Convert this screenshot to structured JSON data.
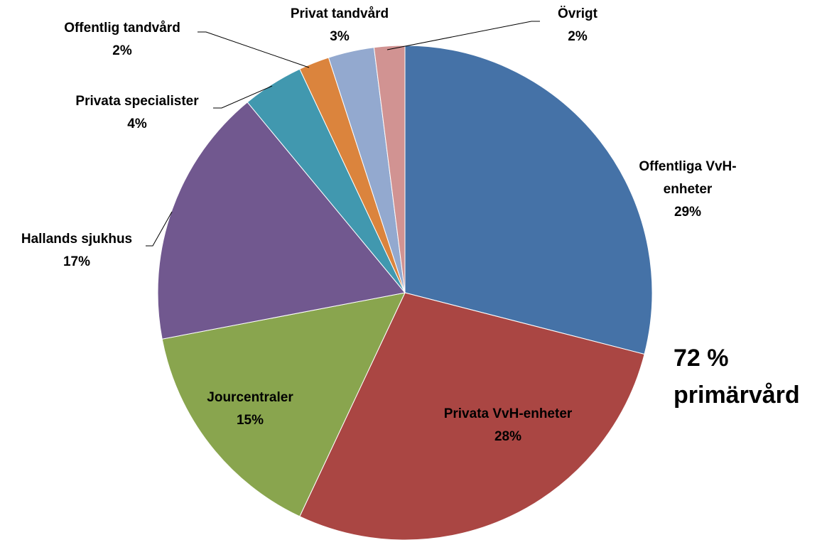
{
  "chart_data": {
    "type": "pie",
    "categories": [
      "Offentliga VvH-enheter",
      "Privata VvH-enheter",
      "Jourcentraler",
      "Hallands sjukhus",
      "Privata specialister",
      "Offentlig tandvård",
      "Privat tandvård",
      "Övrigt"
    ],
    "values": [
      29,
      28,
      15,
      17,
      4,
      2,
      3,
      2
    ],
    "value_labels": [
      "29%",
      "28%",
      "15%",
      "17%",
      "4%",
      "2%",
      "3%",
      "2%"
    ],
    "colors": [
      "#4572a7",
      "#aa4643",
      "#89a54e",
      "#71588f",
      "#4198af",
      "#db843d",
      "#93a9cf",
      "#d19392"
    ],
    "annotation": "72 % primärvård"
  }
}
